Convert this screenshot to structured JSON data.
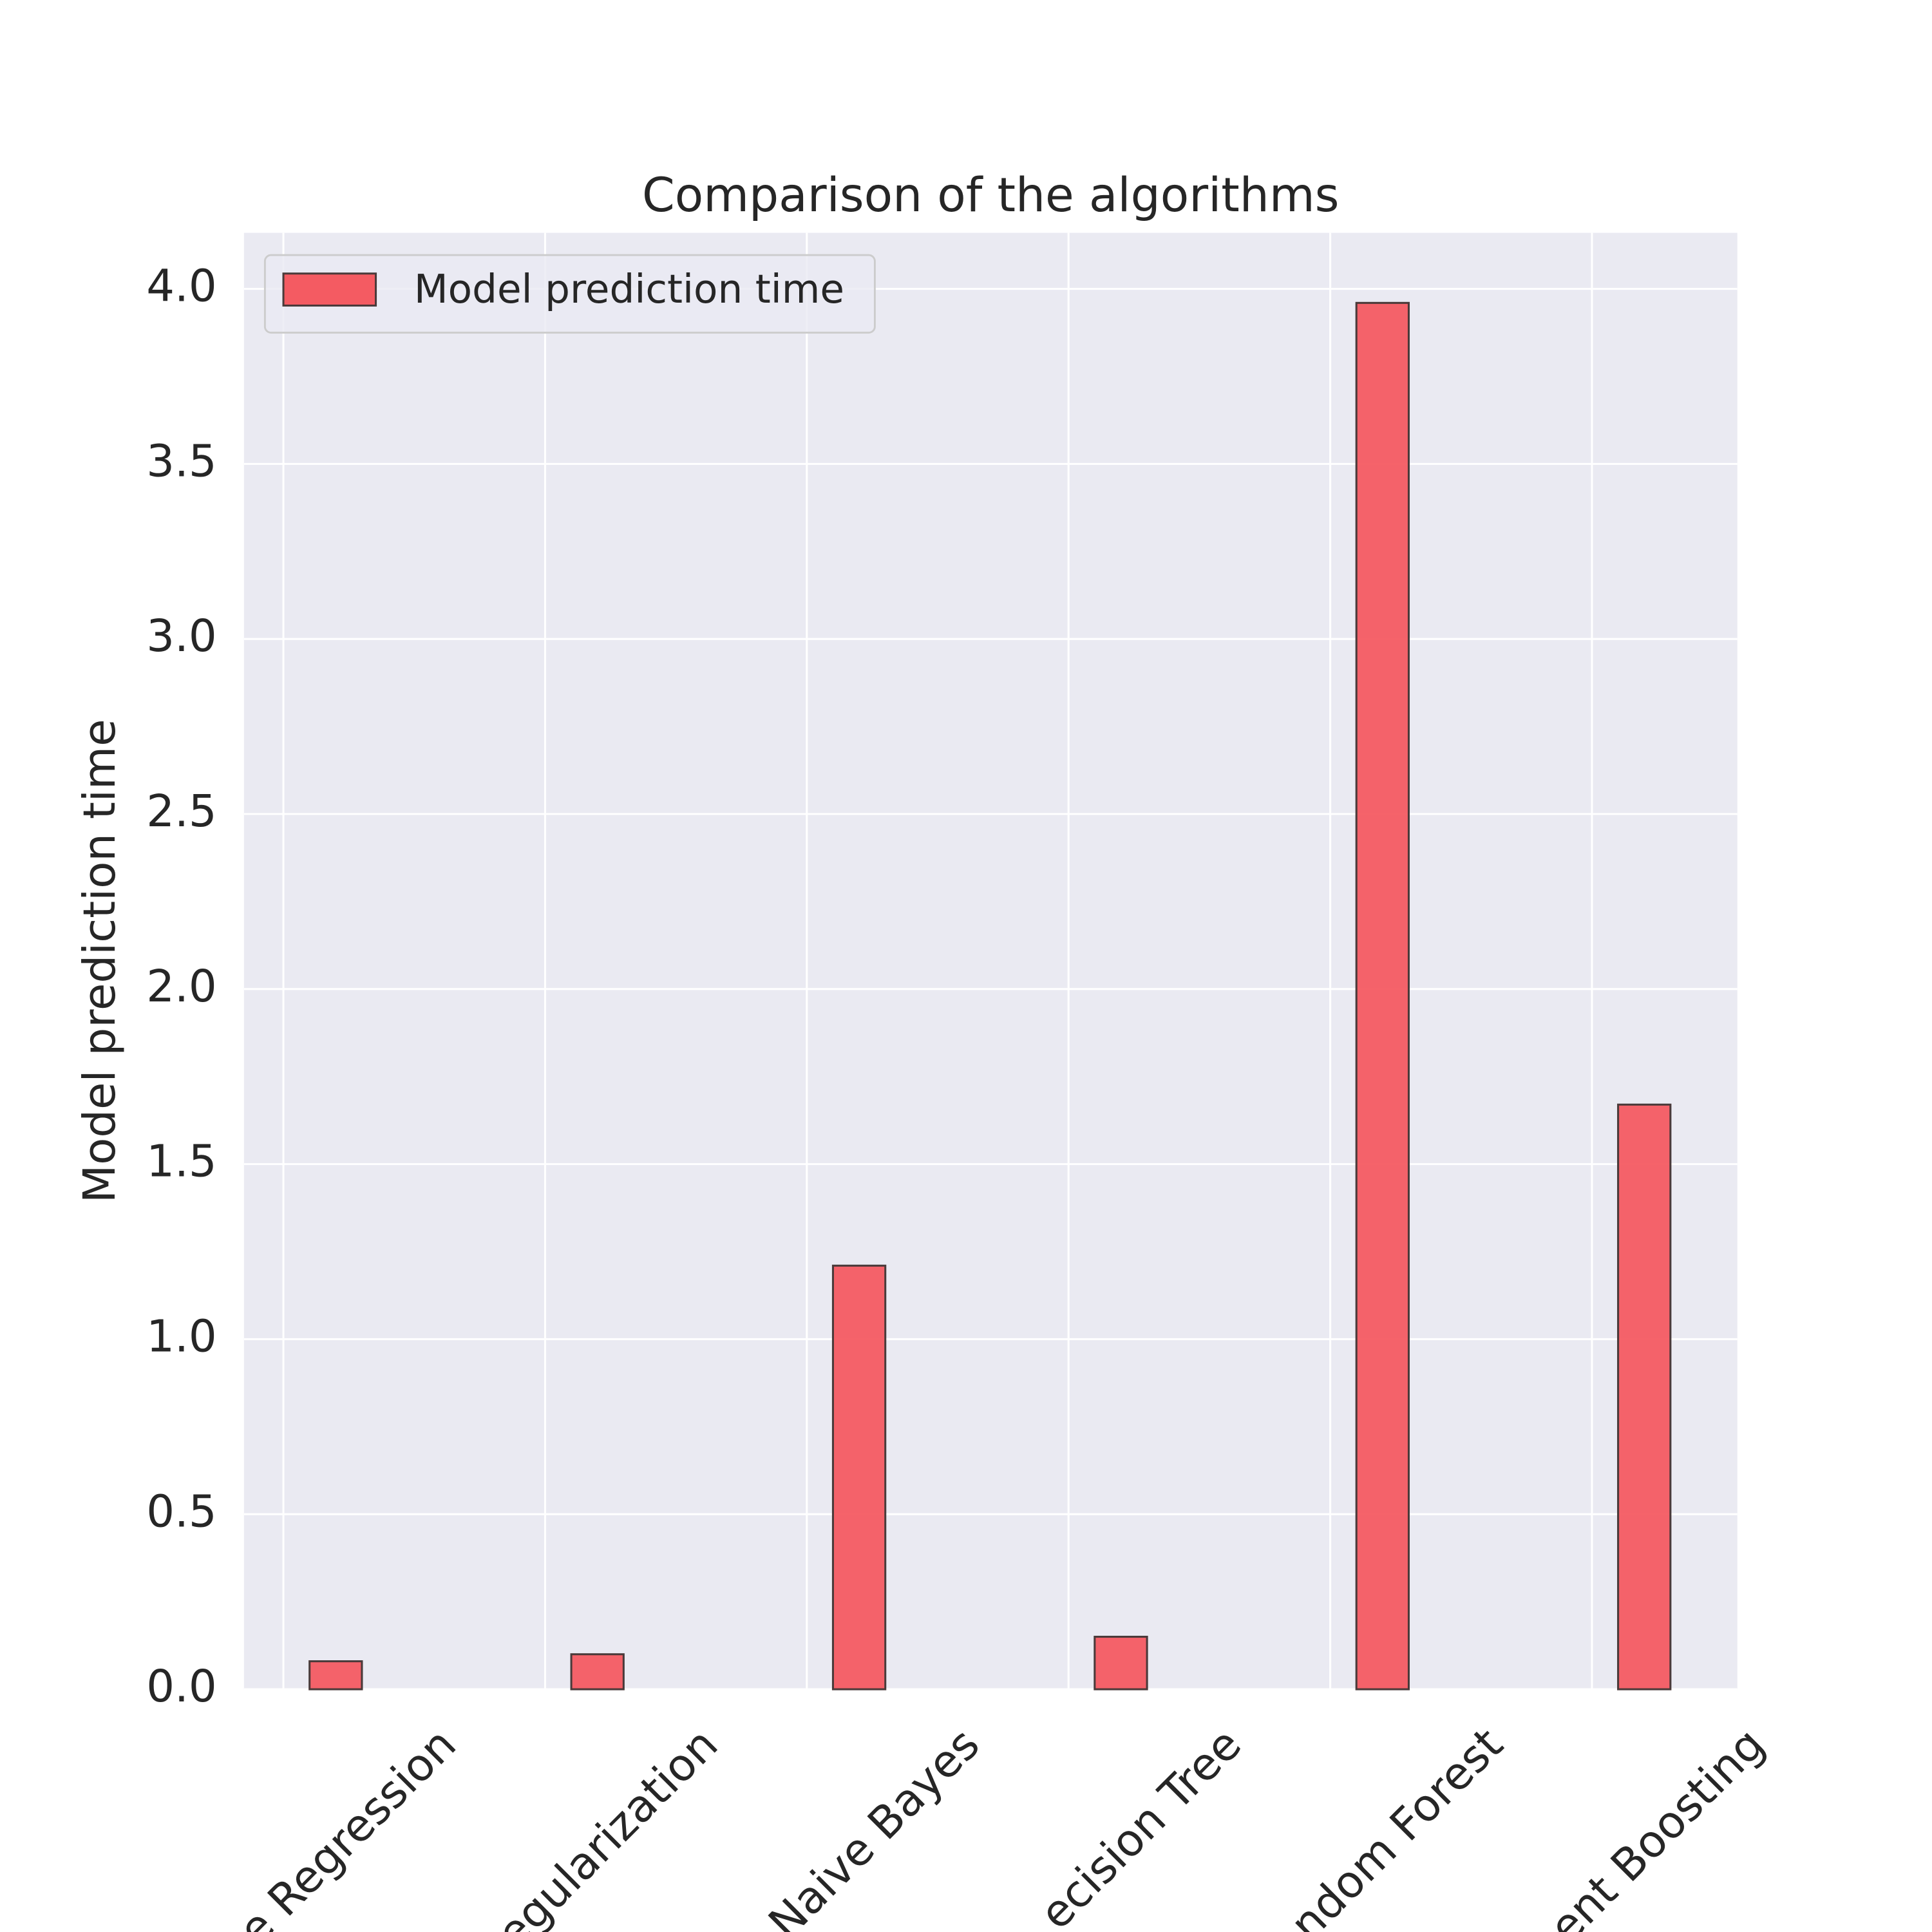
{
  "chart_data": {
    "type": "bar",
    "title": "Comparison of the algorithms",
    "y_label": "Model prediction time",
    "categories": [
      "e Regression",
      "egularization",
      "Naive Bayes",
      "ecision Tree",
      "ndom Forest",
      "ent Boosting"
    ],
    "series": [
      {
        "name": "Model prediction time",
        "color": "#f45b62",
        "values": [
          0.08,
          0.1,
          1.21,
          0.15,
          3.96,
          1.67
        ]
      }
    ],
    "ylim": [
      0,
      4.16
    ],
    "yticks": [
      {
        "value": 0,
        "label": "0.0"
      },
      0.5,
      {
        "value": 1,
        "label": "1.0"
      },
      1.5,
      {
        "value": 2,
        "label": "2.0"
      },
      2.5,
      {
        "value": 3,
        "label": "3.0"
      },
      3.5,
      {
        "value": 4,
        "label": "4.0"
      }
    ],
    "grid": true,
    "legend_position": "upper left"
  }
}
